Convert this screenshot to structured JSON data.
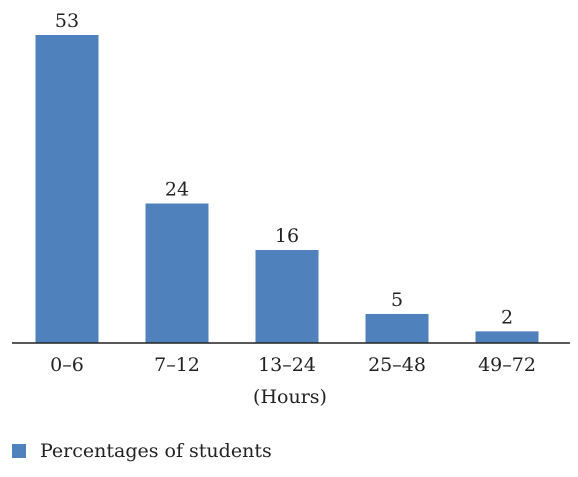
{
  "chart_data": {
    "type": "bar",
    "categories": [
      "0–6",
      "7–12",
      "13–24",
      "25–48",
      "49–72"
    ],
    "series": [
      {
        "name": "Percentages of students",
        "values": [
          53,
          24,
          16,
          5,
          2
        ],
        "color": "#4f81bd"
      }
    ],
    "data_labels": [
      "53",
      "24",
      "16",
      "5",
      "2"
    ],
    "xlabel": "(Hours)",
    "ylabel": "",
    "title": "",
    "ylim": [
      0,
      53
    ],
    "grid": false,
    "legend_position": "bottom-left"
  }
}
